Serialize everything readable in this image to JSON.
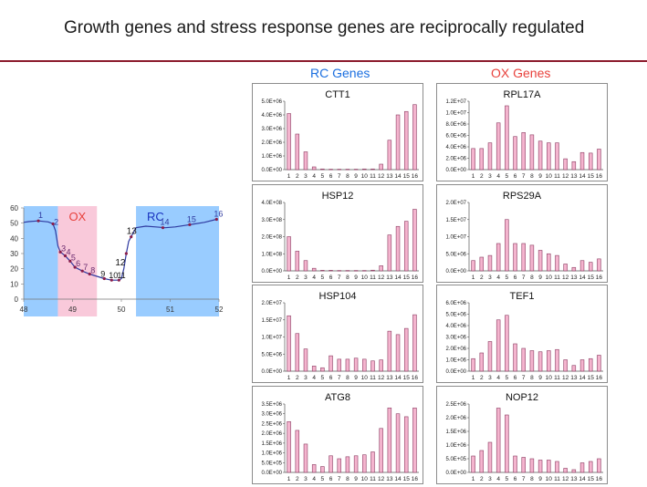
{
  "slide": {
    "title": "Growth genes and stress response genes are reciprocally regulated",
    "rc_header": "RC Genes",
    "ox_header": "OX Genes"
  },
  "colors": {
    "rc_blue": "#99ccff",
    "ox_pink": "#f9c9da",
    "bar_fill": "#f4b4ce",
    "bar_stroke": "#8a3a60",
    "line_color": "#2f3aa0",
    "ox_label": "#e8413c",
    "rc_label": "#1a33c0",
    "title_rule": "#8b1a2b"
  },
  "chart_data": [
    {
      "id": "oxygen",
      "type": "line",
      "title": "",
      "xlabel": "",
      "ylabel": "",
      "xlim": [
        48,
        52
      ],
      "ylim": [
        0,
        60
      ],
      "x_ticks": [
        "48",
        "49",
        "50",
        "51",
        "52"
      ],
      "y_ticks": [
        "0",
        "10",
        "20",
        "30",
        "40",
        "50",
        "60"
      ],
      "regions": [
        {
          "label": "",
          "x_start": 48,
          "x_end": 48.7,
          "color": "rc"
        },
        {
          "label": "OX",
          "x_start": 48.7,
          "x_end": 49.5,
          "color": "ox"
        },
        {
          "label": "RC",
          "x_start": 50.3,
          "x_end": 52,
          "color": "rc"
        }
      ],
      "x": [
        48.0,
        48.1,
        48.3,
        48.5,
        48.6,
        48.65,
        48.7,
        48.75,
        48.85,
        48.95,
        49.05,
        49.2,
        49.35,
        49.5,
        49.65,
        49.8,
        49.95,
        50.0,
        50.05,
        50.1,
        50.15,
        50.2,
        50.3,
        50.5,
        50.7,
        50.9,
        51.1,
        51.3,
        51.5,
        51.7,
        51.95
      ],
      "y": [
        50.5,
        51.0,
        51.5,
        50.8,
        49.5,
        45.0,
        35.0,
        31.0,
        28.5,
        25.0,
        21.0,
        18.5,
        16.5,
        15.0,
        13.5,
        12.5,
        12.5,
        13.5,
        20.0,
        30.0,
        38.0,
        41.0,
        47.0,
        48.0,
        47.5,
        47.0,
        47.5,
        48.5,
        49.5,
        50.5,
        52.5
      ],
      "points": [
        {
          "label": "1",
          "x": 48.3,
          "y": 51.5
        },
        {
          "label": "2",
          "x": 48.6,
          "y": 49.5
        },
        {
          "label": "3",
          "x": 48.75,
          "y": 31.0
        },
        {
          "label": "4",
          "x": 48.85,
          "y": 28.5
        },
        {
          "label": "5",
          "x": 48.95,
          "y": 25.0
        },
        {
          "label": "6",
          "x": 49.05,
          "y": 21.0
        },
        {
          "label": "7",
          "x": 49.2,
          "y": 18.5
        },
        {
          "label": "8",
          "x": 49.35,
          "y": 16.5
        },
        {
          "label": "9",
          "x": 49.65,
          "y": 13.5
        },
        {
          "label": "10",
          "x": 49.8,
          "y": 12.5
        },
        {
          "label": "11",
          "x": 49.95,
          "y": 12.5
        },
        {
          "label": "12",
          "x": 50.1,
          "y": 30.0
        },
        {
          "label": "13",
          "x": 50.2,
          "y": 41.0
        },
        {
          "label": "14",
          "x": 50.85,
          "y": 47.0
        },
        {
          "label": "15",
          "x": 51.4,
          "y": 49.0
        },
        {
          "label": "16",
          "x": 51.95,
          "y": 52.5
        }
      ]
    },
    {
      "id": "ctt1",
      "type": "bar",
      "title": "CTT1",
      "group": "RC",
      "categories": [
        "1",
        "2",
        "3",
        "4",
        "5",
        "6",
        "7",
        "8",
        "9",
        "10",
        "11",
        "12",
        "13",
        "14",
        "15",
        "16"
      ],
      "values": [
        4100000.0,
        2600000.0,
        1300000.0,
        200000.0,
        50000.0,
        30000.0,
        30000.0,
        30000.0,
        30000.0,
        50000.0,
        50000.0,
        400000.0,
        2150000.0,
        4000000.0,
        4250000.0,
        4750000.0
      ],
      "ylim": [
        0,
        5000000.0
      ],
      "y_ticks": [
        "0.0E+00",
        "1.0E+06",
        "2.0E+06",
        "3.0E+06",
        "4.0E+06",
        "5.0E+06"
      ]
    },
    {
      "id": "rpl17a",
      "type": "bar",
      "title": "RPL17A",
      "group": "OX",
      "categories": [
        "1",
        "2",
        "3",
        "4",
        "5",
        "6",
        "7",
        "8",
        "9",
        "10",
        "11",
        "12",
        "13",
        "14",
        "15",
        "16"
      ],
      "values": [
        3700000.0,
        3700000.0,
        4700000.0,
        8200000.0,
        11200000.0,
        5800000.0,
        6500000.0,
        6100000.0,
        5000000.0,
        4700000.0,
        4700000.0,
        1900000.0,
        1400000.0,
        3000000.0,
        2900000.0,
        3600000.0
      ],
      "ylim": [
        0,
        12000000.0
      ],
      "y_ticks": [
        "0.0E+00",
        "2.0E+06",
        "4.0E+06",
        "6.0E+06",
        "8.0E+06",
        "1.0E+07",
        "1.2E+07"
      ]
    },
    {
      "id": "hsp12",
      "type": "bar",
      "title": "HSP12",
      "group": "RC",
      "categories": [
        "1",
        "2",
        "3",
        "4",
        "5",
        "6",
        "7",
        "8",
        "9",
        "10",
        "11",
        "12",
        "13",
        "14",
        "15",
        "16"
      ],
      "values": [
        200000000.0,
        115000000.0,
        60000000.0,
        15000000.0,
        3000000.0,
        3000000.0,
        2000000.0,
        2000000.0,
        2000000.0,
        2000000.0,
        4000000.0,
        30000000.0,
        210000000.0,
        260000000.0,
        290000000.0,
        360000000.0
      ],
      "ylim": [
        0,
        400000000.0
      ],
      "y_ticks": [
        "0.0E+00",
        "1.0E+08",
        "2.0E+08",
        "3.0E+08",
        "4.0E+08"
      ]
    },
    {
      "id": "rps29a",
      "type": "bar",
      "title": "RPS29A",
      "group": "OX",
      "categories": [
        "1",
        "2",
        "3",
        "4",
        "5",
        "6",
        "7",
        "8",
        "9",
        "10",
        "11",
        "12",
        "13",
        "14",
        "15",
        "16"
      ],
      "values": [
        3000000.0,
        4000000.0,
        4500000.0,
        8000000.0,
        15000000.0,
        8000000.0,
        8000000.0,
        7500000.0,
        6000000.0,
        5000000.0,
        4500000.0,
        2000000.0,
        1000000.0,
        3000000.0,
        2500000.0,
        3500000.0
      ],
      "ylim": [
        0,
        20000000.0
      ],
      "y_ticks": [
        "0.0E+00",
        "5.0E+06",
        "1.0E+07",
        "1.5E+07",
        "2.0E+07"
      ]
    },
    {
      "id": "hsp104",
      "type": "bar",
      "title": "HSP104",
      "group": "RC",
      "categories": [
        "1",
        "2",
        "3",
        "4",
        "5",
        "6",
        "7",
        "8",
        "9",
        "10",
        "11",
        "12",
        "13",
        "14",
        "15",
        "16"
      ],
      "values": [
        16200000.0,
        11000000.0,
        6500000.0,
        1500000.0,
        1000000.0,
        4500000.0,
        3500000.0,
        3500000.0,
        3800000.0,
        3500000.0,
        3000000.0,
        3300000.0,
        11700000.0,
        10700000.0,
        12500000.0,
        16500000.0
      ],
      "ylim": [
        0,
        20000000.0
      ],
      "y_ticks": [
        "0.0E+00",
        "5.0E+06",
        "1.0E+07",
        "1.5E+07",
        "2.0E+07"
      ]
    },
    {
      "id": "tef1",
      "type": "bar",
      "title": "TEF1",
      "group": "OX",
      "categories": [
        "1",
        "2",
        "3",
        "4",
        "5",
        "6",
        "7",
        "8",
        "9",
        "10",
        "11",
        "12",
        "13",
        "14",
        "15",
        "16"
      ],
      "values": [
        1100000.0,
        1600000.0,
        2600000.0,
        4500000.0,
        4900000.0,
        2400000.0,
        2000000.0,
        1800000.0,
        1700000.0,
        1800000.0,
        1900000.0,
        1000000.0,
        500000.0,
        1000000.0,
        1100000.0,
        1400000.0
      ],
      "ylim": [
        0,
        6000000.0
      ],
      "y_ticks": [
        "0.0E+00",
        "1.0E+06",
        "2.0E+06",
        "3.0E+06",
        "4.0E+06",
        "5.0E+06",
        "6.0E+06"
      ]
    },
    {
      "id": "atg8",
      "type": "bar",
      "title": "ATG8",
      "group": "RC",
      "categories": [
        "1",
        "2",
        "3",
        "4",
        "5",
        "6",
        "7",
        "8",
        "9",
        "10",
        "11",
        "12",
        "13",
        "14",
        "15",
        "16"
      ],
      "values": [
        2600000.0,
        2150000.0,
        1450000.0,
        400000.0,
        300000.0,
        850000.0,
        700000.0,
        800000.0,
        850000.0,
        900000.0,
        1050000.0,
        2250000.0,
        3300000.0,
        3000000.0,
        2850000.0,
        3300000.0
      ],
      "ylim": [
        0,
        3500000.0
      ],
      "y_ticks": [
        "0.0E+00",
        "5.0E+05",
        "1.0E+06",
        "1.5E+06",
        "2.0E+06",
        "2.5E+06",
        "3.0E+06",
        "3.5E+06"
      ]
    },
    {
      "id": "nop12",
      "type": "bar",
      "title": "NOP12",
      "group": "OX",
      "categories": [
        "1",
        "2",
        "3",
        "4",
        "5",
        "6",
        "7",
        "8",
        "9",
        "10",
        "11",
        "12",
        "13",
        "14",
        "15",
        "16"
      ],
      "values": [
        600000.0,
        800000.0,
        1100000.0,
        2350000.0,
        2100000.0,
        600000.0,
        550000.0,
        500000.0,
        450000.0,
        450000.0,
        400000.0,
        150000.0,
        100000.0,
        350000.0,
        400000.0,
        500000.0
      ],
      "ylim": [
        0,
        2500000.0
      ],
      "y_ticks": [
        "0.0E+00",
        "5.0E+05",
        "1.0E+06",
        "1.5E+06",
        "2.0E+06",
        "2.5E+06"
      ]
    }
  ]
}
